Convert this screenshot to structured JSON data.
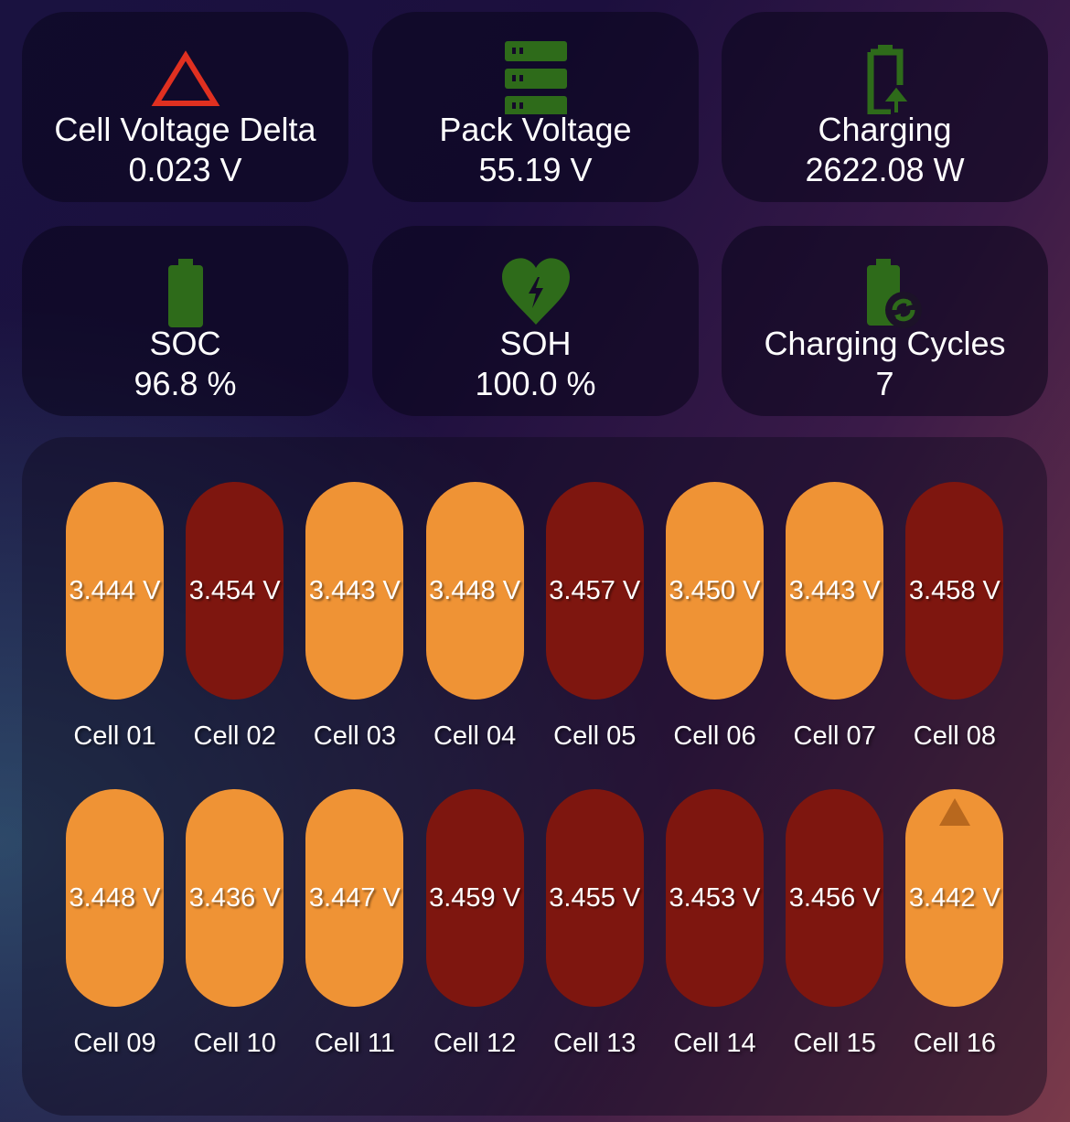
{
  "colors": {
    "normal": "#ef9335",
    "high": "#7e160f",
    "icon_green": "#2e6b1a",
    "alert_red": "#e03020"
  },
  "cards": [
    {
      "icon": "triangle-alert-icon",
      "title": "Cell Voltage Delta",
      "value": "0.023 V"
    },
    {
      "icon": "server-stack-icon",
      "title": "Pack Voltage",
      "value": "55.19 V"
    },
    {
      "icon": "battery-charging-icon",
      "title": "Charging",
      "value": "2622.08 W"
    },
    {
      "icon": "battery-full-icon",
      "title": "SOC",
      "value": "96.8 %"
    },
    {
      "icon": "heart-pulse-icon",
      "title": "SOH",
      "value": "100.0 %"
    },
    {
      "icon": "battery-sync-icon",
      "title": "Charging Cycles",
      "value": "7"
    }
  ],
  "cells": [
    {
      "label": "Cell 01",
      "value": "3.444 V",
      "state": "normal"
    },
    {
      "label": "Cell 02",
      "value": "3.454 V",
      "state": "high"
    },
    {
      "label": "Cell 03",
      "value": "3.443 V",
      "state": "normal"
    },
    {
      "label": "Cell 04",
      "value": "3.448 V",
      "state": "normal"
    },
    {
      "label": "Cell 05",
      "value": "3.457 V",
      "state": "high"
    },
    {
      "label": "Cell 06",
      "value": "3.450 V",
      "state": "normal"
    },
    {
      "label": "Cell 07",
      "value": "3.443 V",
      "state": "normal"
    },
    {
      "label": "Cell 08",
      "value": "3.458 V",
      "state": "high"
    },
    {
      "label": "Cell 09",
      "value": "3.448 V",
      "state": "normal"
    },
    {
      "label": "Cell 10",
      "value": "3.436 V",
      "state": "normal"
    },
    {
      "label": "Cell 11",
      "value": "3.447 V",
      "state": "normal"
    },
    {
      "label": "Cell 12",
      "value": "3.459 V",
      "state": "high"
    },
    {
      "label": "Cell 13",
      "value": "3.455 V",
      "state": "high"
    },
    {
      "label": "Cell 14",
      "value": "3.453 V",
      "state": "high"
    },
    {
      "label": "Cell 15",
      "value": "3.456 V",
      "state": "high"
    },
    {
      "label": "Cell 16",
      "value": "3.442 V",
      "state": "normal",
      "marker": "triangle-up-icon"
    }
  ]
}
